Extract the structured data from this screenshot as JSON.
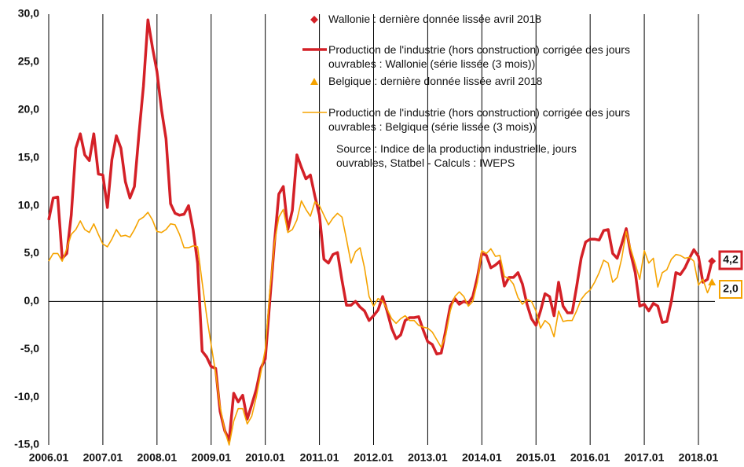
{
  "chart_data": {
    "type": "line",
    "categories": [
      "2006.01",
      null,
      null,
      null,
      null,
      null,
      null,
      null,
      null,
      null,
      null,
      null,
      "2007.01",
      null,
      null,
      null,
      null,
      null,
      null,
      null,
      null,
      null,
      null,
      null,
      "2008.01",
      null,
      null,
      null,
      null,
      null,
      null,
      null,
      null,
      null,
      null,
      null,
      "2009.01",
      null,
      null,
      null,
      null,
      null,
      null,
      null,
      null,
      null,
      null,
      null,
      "2010.01",
      null,
      null,
      null,
      null,
      null,
      null,
      null,
      null,
      null,
      null,
      null,
      "2011.01",
      null,
      null,
      null,
      null,
      null,
      null,
      null,
      null,
      null,
      null,
      null,
      "2012.01",
      null,
      null,
      null,
      null,
      null,
      null,
      null,
      null,
      null,
      null,
      null,
      "2013.01",
      null,
      null,
      null,
      null,
      null,
      null,
      null,
      null,
      null,
      null,
      null,
      "2014.01",
      null,
      null,
      null,
      null,
      null,
      null,
      null,
      null,
      null,
      null,
      null,
      "2015.01",
      null,
      null,
      null,
      null,
      null,
      null,
      null,
      null,
      null,
      null,
      null,
      "2016.01",
      null,
      null,
      null,
      null,
      null,
      null,
      null,
      null,
      null,
      null,
      null,
      "2017.01",
      null,
      null,
      null,
      null,
      null,
      null,
      null,
      null,
      null,
      null,
      null,
      "2018.01",
      null,
      null,
      null
    ],
    "series": [
      {
        "name": "Production de l'industrie (hors construction) corrigée des jours ouvrables : Wallonie (série lissée (3 mois))",
        "color": "#d42027",
        "marker": "diamond",
        "marker_label": "Wallonie : dernière donnée lissée avril 2018",
        "values": [
          8.5,
          10.8,
          10.9,
          4.5,
          5.0,
          9.0,
          16.0,
          17.5,
          15.3,
          14.7,
          17.5,
          13.3,
          13.2,
          9.8,
          14.8,
          17.3,
          16.0,
          12.5,
          10.8,
          12.0,
          17.5,
          22.5,
          29.4,
          26.5,
          24.0,
          20.0,
          17.0,
          10.2,
          9.2,
          9.0,
          9.1,
          10.0,
          7.5,
          4.0,
          -5.2,
          -5.8,
          -6.8,
          -7.0,
          -11.5,
          -13.5,
          -14.5,
          -9.6,
          -10.5,
          -9.8,
          -12.3,
          -10.8,
          -9.2,
          -7.0,
          -6.0,
          0.0,
          6.0,
          11.2,
          12.0,
          7.5,
          9.5,
          15.3,
          14.0,
          12.8,
          13.2,
          11.0,
          9.0,
          4.4,
          4.0,
          4.9,
          5.1,
          2.2,
          -0.4,
          -0.4,
          0.0,
          -0.6,
          -1.0,
          -2.0,
          -1.5,
          -0.9,
          0.5,
          -1.0,
          -2.8,
          -3.9,
          -3.5,
          -2.0,
          -1.7,
          -1.7,
          -1.6,
          -3.0,
          -4.2,
          -4.5,
          -5.5,
          -5.4,
          -3.0,
          -0.5,
          0.3,
          -0.3,
          0.0,
          -0.2,
          0.5,
          2.5,
          5.0,
          4.8,
          3.5,
          3.8,
          4.2,
          1.6,
          2.5,
          2.5,
          3.0,
          1.8,
          -0.3,
          -1.8,
          -2.5,
          -1.0,
          0.8,
          0.5,
          -1.5,
          2.0,
          -0.5,
          -1.2,
          -1.2,
          1.5,
          4.5,
          6.2,
          6.5,
          6.5,
          6.4,
          7.4,
          7.5,
          5.0,
          4.5,
          6.0,
          7.6,
          5.0,
          3.0,
          -0.5,
          -0.3,
          -1.0,
          -0.2,
          -0.5,
          -2.2,
          -2.1,
          0.0,
          3.0,
          2.8,
          3.5,
          4.5,
          5.4,
          4.7,
          2.0,
          2.3,
          4.2
        ],
        "value_labels": [
          null,
          null,
          null,
          null,
          null,
          null,
          null,
          null,
          null,
          null,
          null,
          null,
          null,
          null,
          null,
          null,
          null,
          null,
          null,
          null,
          null,
          null,
          null,
          null,
          null,
          null,
          null,
          null,
          null,
          null,
          null,
          null,
          null,
          null,
          null,
          null,
          null,
          null,
          null,
          null,
          null,
          null,
          null,
          null,
          null,
          null,
          null,
          null,
          null,
          null,
          null,
          null,
          null,
          null,
          null,
          null,
          null,
          null,
          null,
          null,
          null,
          null,
          null,
          null,
          null,
          null,
          null,
          null,
          null,
          null,
          null,
          null,
          null,
          null,
          null,
          null,
          null,
          null,
          null,
          null,
          null,
          null,
          null,
          null,
          null,
          null,
          null,
          null,
          null,
          null,
          null,
          null,
          null,
          null,
          null,
          null,
          null,
          null,
          null,
          null,
          null,
          null,
          null,
          null,
          null,
          null,
          null,
          null,
          null,
          null,
          null,
          null,
          null,
          null,
          null,
          null,
          null,
          null,
          null,
          null,
          null,
          null,
          null,
          null,
          null,
          null,
          null,
          null,
          null,
          null,
          null,
          null,
          null,
          null,
          null,
          null,
          null,
          null,
          null,
          null,
          null,
          null,
          null,
          null,
          null,
          null,
          null,
          "4,2"
        ]
      },
      {
        "name": "Production de l'industrie (hors construction) corrigée des jours ouvrables : Belgique (série lissée (3 mois))",
        "color": "#f5a300",
        "marker": "triangle",
        "marker_label": "Belgique : dernière donnée lissée avril 2018",
        "values": [
          4.2,
          5.0,
          5.0,
          4.2,
          5.5,
          7.0,
          7.5,
          8.4,
          7.5,
          7.2,
          8.1,
          7.0,
          6.0,
          5.7,
          6.5,
          7.5,
          6.8,
          6.9,
          6.7,
          7.5,
          8.5,
          8.8,
          9.3,
          8.5,
          7.3,
          7.2,
          7.5,
          8.1,
          8.0,
          7.0,
          5.6,
          5.6,
          5.8,
          5.7,
          2.0,
          -1.5,
          -4.5,
          -7.5,
          -11.0,
          -13.5,
          -15.0,
          -12.5,
          -11.2,
          -11.2,
          -12.8,
          -12.0,
          -10.0,
          -7.5,
          -5.0,
          1.0,
          6.0,
          8.8,
          9.6,
          7.2,
          7.5,
          8.5,
          10.5,
          9.6,
          8.9,
          10.4,
          10.0,
          9.0,
          8.0,
          8.7,
          9.2,
          8.8,
          6.5,
          4.0,
          5.2,
          5.6,
          3.5,
          0.5,
          -0.5,
          0.3,
          0.0,
          -0.8,
          -1.8,
          -2.3,
          -1.8,
          -1.5,
          -2.0,
          -2.0,
          -2.5,
          -2.7,
          -2.8,
          -3.2,
          -4.0,
          -4.8,
          -3.5,
          -1.0,
          0.5,
          1.0,
          0.5,
          -0.5,
          0.0,
          2.0,
          5.3,
          5.0,
          5.5,
          4.7,
          4.8,
          2.6,
          2.4,
          1.8,
          0.4,
          -0.3,
          0.2,
          0.0,
          -1.0,
          -2.8,
          -2.0,
          -2.4,
          -3.7,
          -1.0,
          -2.1,
          -2.0,
          -2.0,
          -1.0,
          0.2,
          0.8,
          1.2,
          2.0,
          3.0,
          4.3,
          4.0,
          2.0,
          2.5,
          4.5,
          7.3,
          5.5,
          3.9,
          2.3,
          5.3,
          4.0,
          4.5,
          1.5,
          3.0,
          3.3,
          4.4,
          4.9,
          4.8,
          4.5,
          4.6,
          4.2,
          1.7,
          2.3,
          0.9,
          2.0
        ],
        "value_labels": [
          null,
          null,
          null,
          null,
          null,
          null,
          null,
          null,
          null,
          null,
          null,
          null,
          null,
          null,
          null,
          null,
          null,
          null,
          null,
          null,
          null,
          null,
          null,
          null,
          null,
          null,
          null,
          null,
          null,
          null,
          null,
          null,
          null,
          null,
          null,
          null,
          null,
          null,
          null,
          null,
          null,
          null,
          null,
          null,
          null,
          null,
          null,
          null,
          null,
          null,
          null,
          null,
          null,
          null,
          null,
          null,
          null,
          null,
          null,
          null,
          null,
          null,
          null,
          null,
          null,
          null,
          null,
          null,
          null,
          null,
          null,
          null,
          null,
          null,
          null,
          null,
          null,
          null,
          null,
          null,
          null,
          null,
          null,
          null,
          null,
          null,
          null,
          null,
          null,
          null,
          null,
          null,
          null,
          null,
          null,
          null,
          null,
          null,
          null,
          null,
          null,
          null,
          null,
          null,
          null,
          null,
          null,
          null,
          null,
          null,
          null,
          null,
          null,
          null,
          null,
          null,
          null,
          null,
          null,
          null,
          null,
          null,
          null,
          null,
          null,
          null,
          null,
          null,
          null,
          null,
          null,
          null,
          null,
          null,
          null,
          null,
          null,
          null,
          null,
          null,
          null,
          null,
          null,
          null,
          null,
          null,
          null,
          "2,0"
        ]
      }
    ],
    "ylim": [
      -15,
      30
    ],
    "yticks": [
      {
        "value": -15,
        "label": "-15,0"
      },
      {
        "value": -10,
        "label": "-10,0"
      },
      {
        "value": -5,
        "label": "-5,0"
      },
      {
        "value": 0,
        "label": "0,0"
      },
      {
        "value": 5,
        "label": "5,0"
      },
      {
        "value": 10,
        "label": "10,0"
      },
      {
        "value": 15,
        "label": "15,0"
      },
      {
        "value": 20,
        "label": "20,0"
      },
      {
        "value": 25,
        "label": "25,0"
      },
      {
        "value": 30,
        "label": "30,0"
      }
    ],
    "annotation": "Source : Indice de la production industrielle, jours ouvrables, Statbel - Calculs : IWEPS"
  }
}
